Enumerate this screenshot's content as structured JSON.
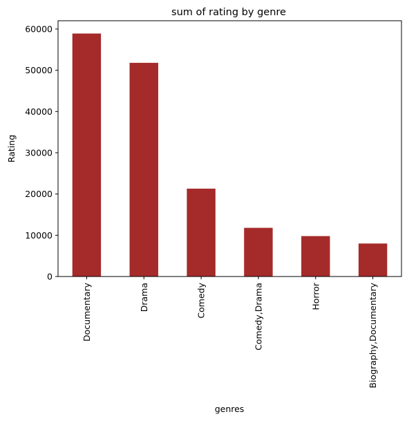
{
  "chart_data": {
    "type": "bar",
    "title": "sum of rating by genre",
    "xlabel": "genres",
    "ylabel": "Rating",
    "categories": [
      "Documentary",
      "Drama",
      "Comedy",
      "Comedy,Drama",
      "Horror",
      "Biography,Documentary"
    ],
    "values": [
      58900,
      51800,
      21300,
      11800,
      9800,
      8000
    ],
    "ylim": [
      0,
      62000
    ],
    "yticks": [
      0,
      10000,
      20000,
      30000,
      40000,
      50000,
      60000
    ],
    "ytick_labels": [
      "0",
      "10000",
      "20000",
      "30000",
      "40000",
      "50000",
      "60000"
    ],
    "bar_color": "#a52a2a",
    "grid": false,
    "legend": "none"
  }
}
